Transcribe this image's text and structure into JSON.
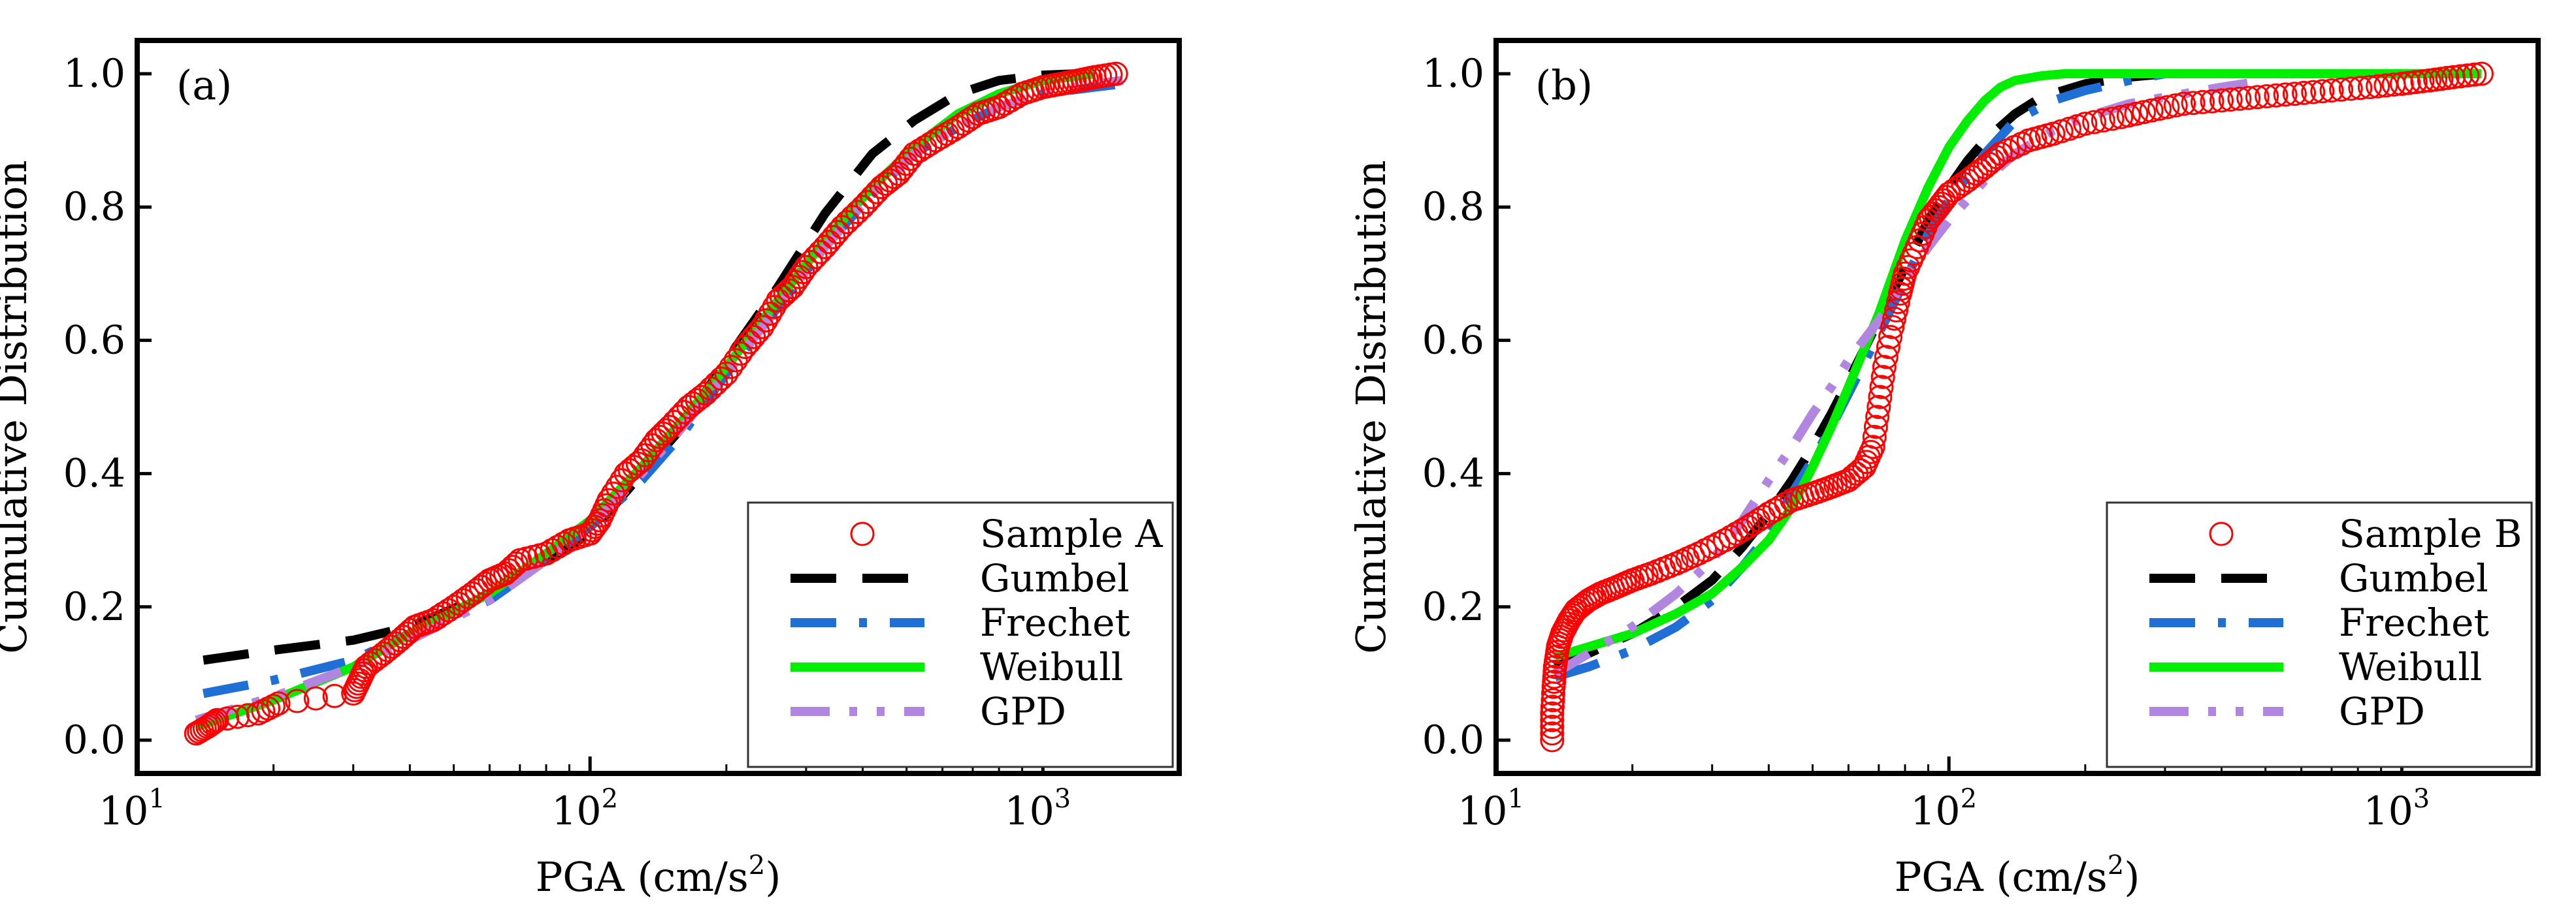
{
  "figure": {
    "panels": [
      {
        "id": "a",
        "panel_label": "(a)",
        "xlabel": "PGA (cm/s",
        "xlabel_sup": "2",
        "xlabel_close": ")",
        "ylabel": "Cumulative Distribution",
        "legend": [
          "Sample A",
          "Gumbel",
          "Frechet",
          "Weibull",
          "GPD"
        ]
      },
      {
        "id": "b",
        "panel_label": "(b)",
        "xlabel": "PGA (cm/s",
        "xlabel_sup": "2",
        "xlabel_close": ")",
        "ylabel": "Cumulative Distribution",
        "legend": [
          "Sample B",
          "Gumbel",
          "Frechet",
          "Weibull",
          "GPD"
        ]
      }
    ]
  },
  "colors": {
    "sample": "#ff0000",
    "gumbel": "#000000",
    "frechet": "#1f6fd6",
    "weibull": "#00ee00",
    "gpd": "#b086e0"
  },
  "chart_data": [
    {
      "type": "line",
      "title": "(a)",
      "xlabel": "PGA (cm/s2)",
      "ylabel": "Cumulative Distribution",
      "xscale": "log",
      "xlim": [
        10,
        2000
      ],
      "ylim": [
        -0.05,
        1.05
      ],
      "x_ticks": [
        {
          "base": "10",
          "exp": "1"
        },
        {
          "base": "10",
          "exp": "2"
        },
        {
          "base": "10",
          "exp": "3"
        }
      ],
      "y_ticks": [
        "0.0",
        "0.2",
        "0.4",
        "0.6",
        "0.8",
        "1.0"
      ],
      "y_tick_values": [
        0,
        0.2,
        0.4,
        0.6,
        0.8,
        1.0
      ],
      "legend_position": "bottom-right",
      "series": [
        {
          "name": "Sample A",
          "kind": "markers",
          "x": [
            13.5,
            14.3,
            15,
            18.5,
            20.5,
            30,
            31,
            32,
            35,
            38,
            41,
            45,
            50,
            55,
            60,
            65,
            70,
            80,
            90,
            100,
            105,
            110,
            120,
            130,
            140,
            150,
            165,
            180,
            200,
            220,
            240,
            260,
            280,
            300,
            330,
            360,
            400,
            440,
            480,
            520,
            580,
            650,
            720,
            800,
            900,
            1000,
            1100,
            1200,
            1300,
            1450
          ],
          "y": [
            0.01,
            0.02,
            0.03,
            0.04,
            0.055,
            0.07,
            0.09,
            0.11,
            0.13,
            0.15,
            0.17,
            0.18,
            0.2,
            0.22,
            0.24,
            0.25,
            0.27,
            0.28,
            0.3,
            0.31,
            0.33,
            0.36,
            0.4,
            0.42,
            0.45,
            0.47,
            0.5,
            0.52,
            0.55,
            0.59,
            0.62,
            0.66,
            0.68,
            0.71,
            0.74,
            0.77,
            0.8,
            0.83,
            0.85,
            0.88,
            0.9,
            0.92,
            0.94,
            0.95,
            0.97,
            0.98,
            0.985,
            0.99,
            0.995,
            1.0
          ]
        },
        {
          "name": "Gumbel",
          "kind": "dashed",
          "x": [
            14,
            20,
            30,
            40,
            60,
            80,
            100,
            130,
            160,
            200,
            260,
            330,
            420,
            520,
            650,
            800,
            1000,
            1200
          ],
          "y": [
            0.12,
            0.135,
            0.15,
            0.17,
            0.22,
            0.27,
            0.31,
            0.4,
            0.47,
            0.57,
            0.68,
            0.79,
            0.88,
            0.93,
            0.97,
            0.99,
            0.998,
            1.0
          ]
        },
        {
          "name": "Frechet",
          "kind": "dashdot",
          "x": [
            14,
            20,
            30,
            40,
            60,
            80,
            100,
            130,
            160,
            200,
            260,
            330,
            420,
            520,
            650,
            800,
            1000,
            1300,
            1500
          ],
          "y": [
            0.07,
            0.09,
            0.12,
            0.16,
            0.21,
            0.27,
            0.32,
            0.39,
            0.46,
            0.55,
            0.65,
            0.74,
            0.82,
            0.88,
            0.92,
            0.95,
            0.97,
            0.98,
            0.985
          ]
        },
        {
          "name": "Weibull",
          "kind": "solid",
          "x": [
            13.5,
            20,
            30,
            40,
            60,
            80,
            100,
            130,
            160,
            200,
            260,
            330,
            420,
            520,
            650,
            800,
            1000,
            1300
          ],
          "y": [
            0.02,
            0.06,
            0.11,
            0.16,
            0.22,
            0.28,
            0.33,
            0.41,
            0.48,
            0.56,
            0.66,
            0.75,
            0.83,
            0.89,
            0.94,
            0.97,
            0.99,
            1.0
          ]
        },
        {
          "name": "GPD",
          "kind": "dashdotdot",
          "x": [
            13.5,
            20,
            30,
            40,
            60,
            80,
            100,
            130,
            160,
            200,
            260,
            330,
            420,
            520,
            650,
            800,
            1000,
            1300,
            1500
          ],
          "y": [
            0.03,
            0.065,
            0.11,
            0.15,
            0.21,
            0.27,
            0.32,
            0.4,
            0.47,
            0.55,
            0.65,
            0.74,
            0.82,
            0.88,
            0.92,
            0.95,
            0.97,
            0.985,
            0.99
          ]
        }
      ]
    },
    {
      "type": "line",
      "title": "(b)",
      "xlabel": "PGA (cm/s2)",
      "ylabel": "Cumulative Distribution",
      "xscale": "log",
      "xlim": [
        10,
        2000
      ],
      "ylim": [
        -0.05,
        1.05
      ],
      "x_ticks": [
        {
          "base": "10",
          "exp": "1"
        },
        {
          "base": "10",
          "exp": "2"
        },
        {
          "base": "10",
          "exp": "3"
        }
      ],
      "y_ticks": [
        "0.0",
        "0.2",
        "0.4",
        "0.6",
        "0.8",
        "1.0"
      ],
      "y_tick_values": [
        0,
        0.2,
        0.4,
        0.6,
        0.8,
        1.0
      ],
      "legend_position": "bottom-right",
      "series": [
        {
          "name": "Sample B",
          "kind": "markers",
          "x": [
            13.3,
            13.3,
            13.4,
            13.5,
            13.7,
            14,
            14.5,
            15,
            16,
            17,
            18.5,
            20,
            22,
            25,
            28,
            32,
            36,
            40,
            45,
            50,
            55,
            60,
            65,
            68,
            70,
            72,
            75,
            78,
            80,
            85,
            90,
            95,
            100,
            110,
            120,
            130,
            150,
            170,
            200,
            240,
            280,
            330,
            400,
            480,
            580,
            700,
            850,
            1000,
            1150,
            1300,
            1500
          ],
          "y": [
            0.0,
            0.04,
            0.08,
            0.11,
            0.14,
            0.16,
            0.18,
            0.195,
            0.21,
            0.22,
            0.23,
            0.24,
            0.25,
            0.265,
            0.28,
            0.3,
            0.32,
            0.34,
            0.36,
            0.37,
            0.38,
            0.39,
            0.41,
            0.44,
            0.5,
            0.56,
            0.62,
            0.67,
            0.7,
            0.74,
            0.78,
            0.8,
            0.82,
            0.84,
            0.86,
            0.88,
            0.9,
            0.91,
            0.925,
            0.935,
            0.945,
            0.955,
            0.96,
            0.965,
            0.97,
            0.975,
            0.98,
            0.985,
            0.99,
            0.995,
            1.0
          ]
        },
        {
          "name": "Gumbel",
          "kind": "dashed",
          "x": [
            13.5,
            16,
            20,
            25,
            30,
            35,
            40,
            45,
            50,
            55,
            60,
            70,
            80,
            90,
            100,
            110,
            120,
            140,
            160,
            200,
            250,
            300
          ],
          "y": [
            0.11,
            0.13,
            0.16,
            0.2,
            0.24,
            0.29,
            0.34,
            0.39,
            0.44,
            0.49,
            0.54,
            0.63,
            0.71,
            0.78,
            0.83,
            0.87,
            0.9,
            0.94,
            0.965,
            0.985,
            0.995,
            1.0
          ]
        },
        {
          "name": "Frechet",
          "kind": "dashdot",
          "x": [
            13.5,
            16,
            20,
            25,
            30,
            35,
            40,
            45,
            50,
            55,
            60,
            70,
            80,
            90,
            100,
            120,
            140,
            170,
            200,
            250,
            300
          ],
          "y": [
            0.095,
            0.11,
            0.135,
            0.17,
            0.21,
            0.26,
            0.31,
            0.37,
            0.42,
            0.47,
            0.52,
            0.61,
            0.69,
            0.76,
            0.81,
            0.88,
            0.93,
            0.96,
            0.975,
            0.99,
            1.0
          ]
        },
        {
          "name": "Weibull",
          "kind": "solid",
          "x": [
            13.5,
            16,
            20,
            25,
            30,
            35,
            40,
            45,
            50,
            55,
            60,
            70,
            80,
            90,
            100,
            110,
            120,
            130,
            140,
            160,
            180,
            200,
            300,
            500,
            1000,
            1500
          ],
          "y": [
            0.125,
            0.14,
            0.16,
            0.19,
            0.22,
            0.26,
            0.3,
            0.35,
            0.41,
            0.47,
            0.53,
            0.64,
            0.75,
            0.83,
            0.89,
            0.93,
            0.96,
            0.98,
            0.99,
            0.997,
            1.0,
            1.0,
            1.0,
            1.0,
            1.0,
            1.0
          ]
        },
        {
          "name": "GPD",
          "kind": "dashdotdot",
          "x": [
            13.5,
            16,
            20,
            25,
            30,
            35,
            40,
            45,
            50,
            55,
            60,
            70,
            80,
            90,
            100,
            120,
            140,
            170,
            200,
            250,
            300,
            400,
            500
          ],
          "y": [
            0.1,
            0.13,
            0.17,
            0.22,
            0.27,
            0.33,
            0.39,
            0.44,
            0.49,
            0.53,
            0.57,
            0.63,
            0.69,
            0.74,
            0.78,
            0.84,
            0.88,
            0.915,
            0.935,
            0.955,
            0.965,
            0.98,
            0.99
          ]
        }
      ]
    }
  ]
}
